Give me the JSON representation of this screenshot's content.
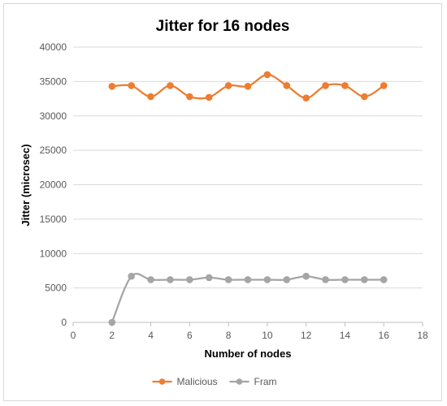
{
  "chart_data": {
    "type": "line",
    "title": "Jitter for 16 nodes",
    "xlabel": "Number of nodes",
    "ylabel": "Jitter (microsec)",
    "xlim": [
      0,
      18
    ],
    "xticks": [
      0,
      2,
      4,
      6,
      8,
      10,
      12,
      14,
      16,
      18
    ],
    "ylim": [
      0,
      40000
    ],
    "yticks": [
      0,
      5000,
      10000,
      15000,
      20000,
      25000,
      30000,
      35000,
      40000
    ],
    "grid": "horizontal",
    "smoothed": true,
    "legend_position": "bottom",
    "series": [
      {
        "name": "Malicious",
        "color": "#ED7D31",
        "x": [
          2,
          3,
          4,
          5,
          6,
          7,
          8,
          9,
          10,
          11,
          12,
          13,
          14,
          15,
          16
        ],
        "y": [
          34300,
          34400,
          32800,
          34400,
          32800,
          32700,
          34400,
          34300,
          36000,
          34400,
          32600,
          34400,
          34400,
          32800,
          34400
        ]
      },
      {
        "name": "Fram",
        "color": "#A5A5A5",
        "x": [
          2,
          3,
          4,
          5,
          6,
          7,
          8,
          9,
          10,
          11,
          12,
          13,
          14,
          15,
          16
        ],
        "y": [
          0,
          6700,
          6200,
          6200,
          6200,
          6500,
          6200,
          6200,
          6200,
          6200,
          6700,
          6200,
          6200,
          6200,
          6200
        ]
      }
    ]
  }
}
